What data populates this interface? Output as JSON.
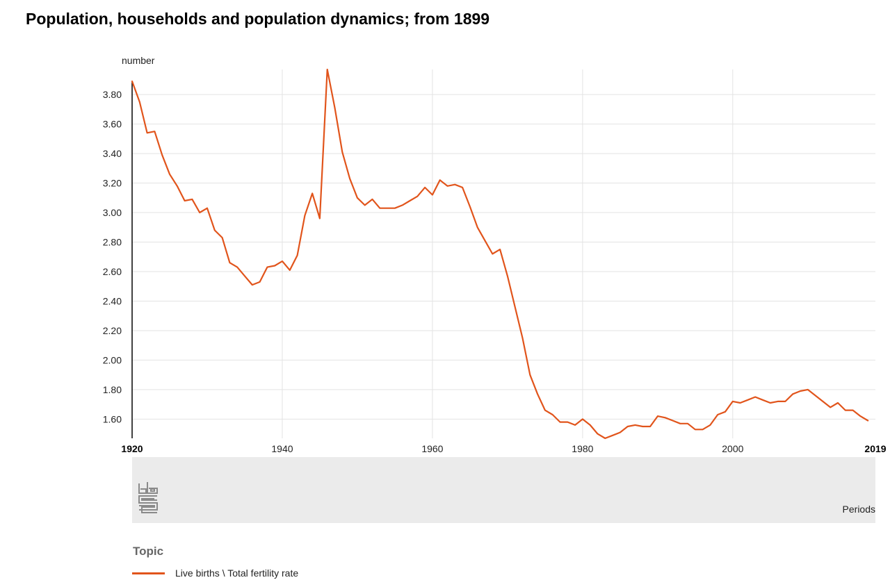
{
  "title": "Population, households and population dynamics; from 1899",
  "chart_data": {
    "type": "line",
    "title": "Population, households and population dynamics; from 1899",
    "ylabel": "number",
    "xlabel": "Periods",
    "xlim": [
      1920,
      2019
    ],
    "ylim": [
      1.47,
      3.97
    ],
    "y_ticks": [
      "1.60",
      "1.80",
      "2.00",
      "2.20",
      "2.40",
      "2.60",
      "2.80",
      "3.00",
      "3.20",
      "3.40",
      "3.60",
      "3.80"
    ],
    "x_ticks": [
      "1920",
      "1940",
      "1960",
      "1980",
      "2000",
      "2019"
    ],
    "grid": true,
    "legend_title": "Topic",
    "legend_position": "bottom",
    "series": [
      {
        "name": "Live births \\ Total fertility rate",
        "color": "#e1541b",
        "x": [
          1920,
          1921,
          1922,
          1923,
          1924,
          1925,
          1926,
          1927,
          1928,
          1929,
          1930,
          1931,
          1932,
          1933,
          1934,
          1935,
          1936,
          1937,
          1938,
          1939,
          1940,
          1941,
          1942,
          1943,
          1944,
          1945,
          1946,
          1947,
          1948,
          1949,
          1950,
          1951,
          1952,
          1953,
          1954,
          1955,
          1956,
          1957,
          1958,
          1959,
          1960,
          1961,
          1962,
          1963,
          1964,
          1965,
          1966,
          1967,
          1968,
          1969,
          1970,
          1971,
          1972,
          1973,
          1974,
          1975,
          1976,
          1977,
          1978,
          1979,
          1980,
          1981,
          1982,
          1983,
          1984,
          1985,
          1986,
          1987,
          1988,
          1989,
          1990,
          1991,
          1992,
          1993,
          1994,
          1995,
          1996,
          1997,
          1998,
          1999,
          2000,
          2001,
          2002,
          2003,
          2004,
          2005,
          2006,
          2007,
          2008,
          2009,
          2010,
          2011,
          2012,
          2013,
          2014,
          2015,
          2016,
          2017,
          2018
        ],
        "values": [
          3.89,
          3.75,
          3.54,
          3.55,
          3.39,
          3.26,
          3.18,
          3.08,
          3.09,
          3.0,
          3.03,
          2.88,
          2.83,
          2.66,
          2.63,
          2.57,
          2.51,
          2.53,
          2.63,
          2.64,
          2.67,
          2.61,
          2.71,
          2.98,
          3.13,
          2.96,
          3.97,
          3.71,
          3.41,
          3.23,
          3.1,
          3.05,
          3.09,
          3.03,
          3.03,
          3.03,
          3.05,
          3.08,
          3.11,
          3.17,
          3.12,
          3.22,
          3.18,
          3.19,
          3.17,
          3.04,
          2.9,
          2.81,
          2.72,
          2.75,
          2.57,
          2.36,
          2.15,
          1.9,
          1.77,
          1.66,
          1.63,
          1.58,
          1.58,
          1.56,
          1.6,
          1.56,
          1.5,
          1.47,
          1.49,
          1.51,
          1.55,
          1.56,
          1.55,
          1.55,
          1.62,
          1.61,
          1.59,
          1.57,
          1.57,
          1.53,
          1.53,
          1.56,
          1.63,
          1.65,
          1.72,
          1.71,
          1.73,
          1.75,
          1.73,
          1.71,
          1.72,
          1.72,
          1.77,
          1.79,
          1.8,
          1.76,
          1.72,
          1.68,
          1.71,
          1.66,
          1.66,
          1.62,
          1.59
        ]
      }
    ]
  }
}
